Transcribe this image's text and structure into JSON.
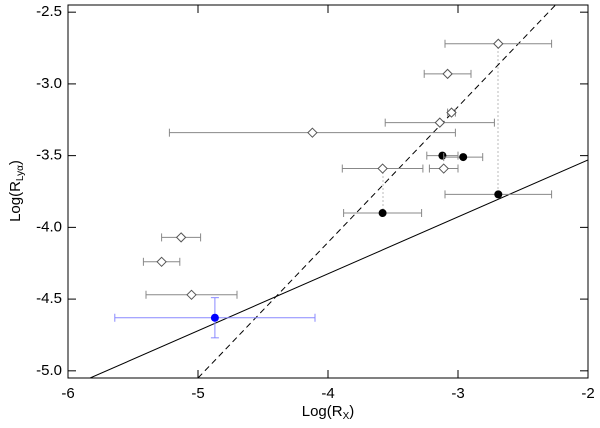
{
  "chart_data": {
    "type": "scatter",
    "x_label": [
      "Log(R",
      "X",
      ")"
    ],
    "y_label": [
      "Log(R",
      "Lyα",
      ")"
    ],
    "xlim": [
      -6,
      -2
    ],
    "ylim": [
      -5.05,
      -2.45
    ],
    "xticks": [
      -6,
      -5,
      -4,
      -3,
      -2
    ],
    "yticks": [
      -2.5,
      {
        "value": -3.0,
        "label": "-3.0"
      },
      -3.5,
      {
        "value": -4.0,
        "label": "-4.0"
      },
      -4.5,
      {
        "value": -5.0,
        "label": "-5.0"
      }
    ],
    "points": [
      {
        "marker": "open-diamond",
        "color": "#000000",
        "x": -2.69,
        "y": -2.72,
        "xerr": 0.41
      },
      {
        "marker": "open-diamond",
        "color": "#000000",
        "x": -3.08,
        "y": -2.93,
        "xerr": 0.18
      },
      {
        "marker": "open-diamond",
        "color": "#000000",
        "x": -3.05,
        "y": -3.2,
        "xerr": 0.03
      },
      {
        "marker": "open-diamond",
        "color": "#000000",
        "x": -3.14,
        "y": -3.27,
        "xerr": 0.42
      },
      {
        "marker": "open-diamond",
        "color": "#000000",
        "x": -4.12,
        "y": -3.34,
        "xerr": 1.1
      },
      {
        "marker": "open-diamond",
        "color": "#000000",
        "x": -3.58,
        "y": -3.59,
        "xerr": 0.31
      },
      {
        "marker": "open-diamond",
        "color": "#000000",
        "x": -3.11,
        "y": -3.59,
        "xerr": 0.11
      },
      {
        "marker": "open-diamond",
        "color": "#000000",
        "x": -5.13,
        "y": -4.07,
        "xerr": 0.15
      },
      {
        "marker": "open-diamond",
        "color": "#000000",
        "x": -5.28,
        "y": -4.24,
        "xerr": 0.14
      },
      {
        "marker": "open-diamond",
        "color": "#000000",
        "x": -5.05,
        "y": -4.47,
        "xerr": 0.35
      },
      {
        "marker": "filled-circle",
        "color": "#000000",
        "x": -3.12,
        "y": -3.5,
        "xerr": 0.12
      },
      {
        "marker": "filled-circle",
        "color": "#000000",
        "x": -2.96,
        "y": -3.51,
        "xerr": 0.15
      },
      {
        "marker": "filled-circle",
        "color": "#000000",
        "x": -3.58,
        "y": -3.9,
        "xerr": 0.3
      },
      {
        "marker": "filled-circle",
        "color": "#000000",
        "x": -2.69,
        "y": -3.77,
        "xerr": 0.41
      },
      {
        "marker": "filled-circle",
        "color": "#0000ff",
        "x": -4.87,
        "y": -4.63,
        "xerr": 0.77,
        "yerr": 0.14
      }
    ],
    "lines": [
      {
        "style": "solid",
        "x": [
          -5.83,
          -2
        ],
        "y": [
          -5.05,
          -3.53
        ]
      },
      {
        "style": "dashed",
        "x": [
          -5.0,
          -2.25
        ],
        "y": [
          -5.05,
          -2.45
        ]
      }
    ]
  }
}
